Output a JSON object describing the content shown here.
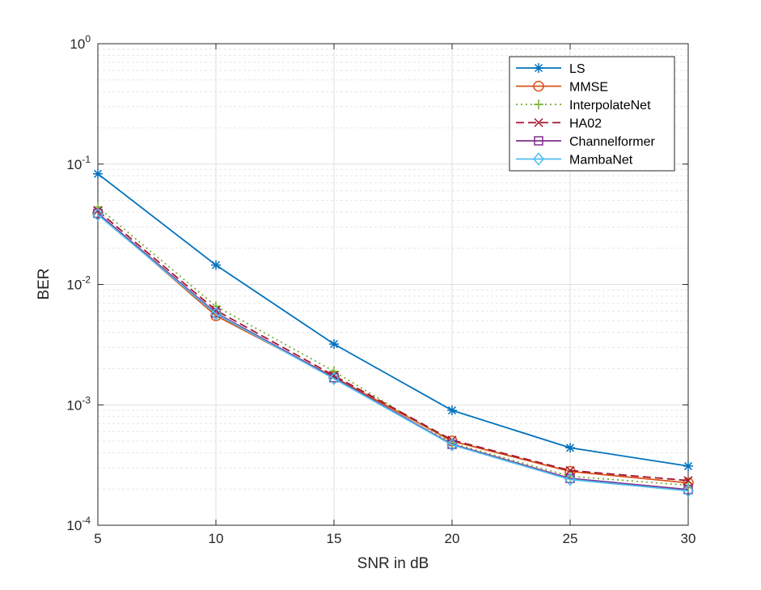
{
  "chart_data": {
    "type": "line",
    "title": "",
    "xlabel": "SNR in dB",
    "ylabel": "BER",
    "yscale": "log",
    "xlim": [
      5,
      30
    ],
    "ylim": [
      0.0001,
      1
    ],
    "grid": true,
    "legend_position": "top-right",
    "x": [
      5,
      10,
      15,
      20,
      25,
      30
    ],
    "x_ticks": [
      "5",
      "10",
      "15",
      "20",
      "25",
      "30"
    ],
    "y_ticks": [
      {
        "value": 1,
        "base": "10",
        "exp": "0"
      },
      {
        "value": 0.1,
        "base": "10",
        "exp": "-1"
      },
      {
        "value": 0.01,
        "base": "10",
        "exp": "-2"
      },
      {
        "value": 0.001,
        "base": "10",
        "exp": "-3"
      },
      {
        "value": 0.0001,
        "base": "10",
        "exp": "-4"
      }
    ],
    "series": [
      {
        "name": "LS",
        "color": "#0072BD",
        "dash": "solid",
        "marker": "asterisk",
        "values": [
          0.083,
          0.0145,
          0.0032,
          0.0009,
          0.00044,
          0.00031
        ]
      },
      {
        "name": "MMSE",
        "color": "#D95319",
        "dash": "solid",
        "marker": "circle",
        "values": [
          0.039,
          0.0055,
          0.0017,
          0.0005,
          0.00028,
          0.000225
        ]
      },
      {
        "name": "InterpolateNet",
        "color": "#77AC30",
        "dash": "dotted",
        "marker": "plus",
        "values": [
          0.044,
          0.0066,
          0.0019,
          0.00048,
          0.000255,
          0.000215
        ]
      },
      {
        "name": "HA02",
        "color": "#A2142F",
        "dash": "dashed",
        "marker": "cross",
        "values": [
          0.041,
          0.0061,
          0.00175,
          0.00051,
          0.000285,
          0.000235
        ]
      },
      {
        "name": "Channelformer",
        "color": "#7E2F8E",
        "dash": "solid",
        "marker": "square",
        "values": [
          0.039,
          0.0058,
          0.00168,
          0.00047,
          0.000245,
          0.000198
        ]
      },
      {
        "name": "MambaNet",
        "color": "#4DBEEE",
        "dash": "solid",
        "marker": "diamond",
        "values": [
          0.038,
          0.0057,
          0.00165,
          0.000465,
          0.00024,
          0.000193
        ]
      }
    ]
  }
}
